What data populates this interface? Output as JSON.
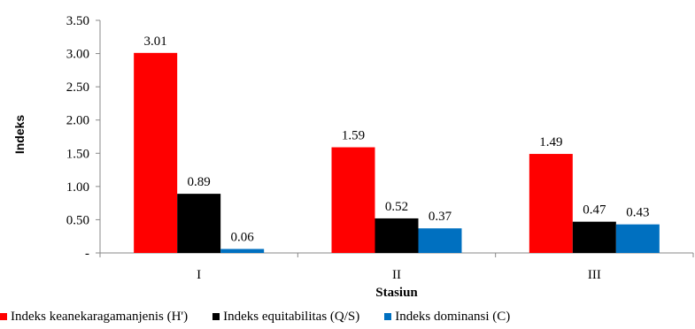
{
  "chart_data": {
    "type": "bar",
    "xlabel": "Stasiun",
    "ylabel": "Indeks",
    "categories": [
      "I",
      "II",
      "III"
    ],
    "series": [
      {
        "name": "Indeks keanekaragamanjenis (H')",
        "color": "#ff0000",
        "values": [
          3.01,
          1.59,
          1.49
        ],
        "labels": [
          "3.01",
          "1.59",
          "1.49"
        ]
      },
      {
        "name": "Indeks equitabilitas (Q/S)",
        "color": "#000000",
        "values": [
          0.89,
          0.52,
          0.47
        ],
        "labels": [
          "0.89",
          "0.52",
          "0.47"
        ]
      },
      {
        "name": "Indeks dominansi (C)",
        "color": "#0070c0",
        "values": [
          0.06,
          0.37,
          0.43
        ],
        "labels": [
          "0.06",
          "0.37",
          "0.43"
        ]
      }
    ],
    "ylim": [
      0,
      3.5
    ],
    "yticks": [
      0,
      0.5,
      1.0,
      1.5,
      2.0,
      2.5,
      3.0,
      3.5
    ],
    "ytick_labels": [
      "-",
      "0.50",
      "1.00",
      "1.50",
      "2.00",
      "2.50",
      "3.00",
      "3.50"
    ],
    "grid": false,
    "legend_position": "bottom"
  }
}
